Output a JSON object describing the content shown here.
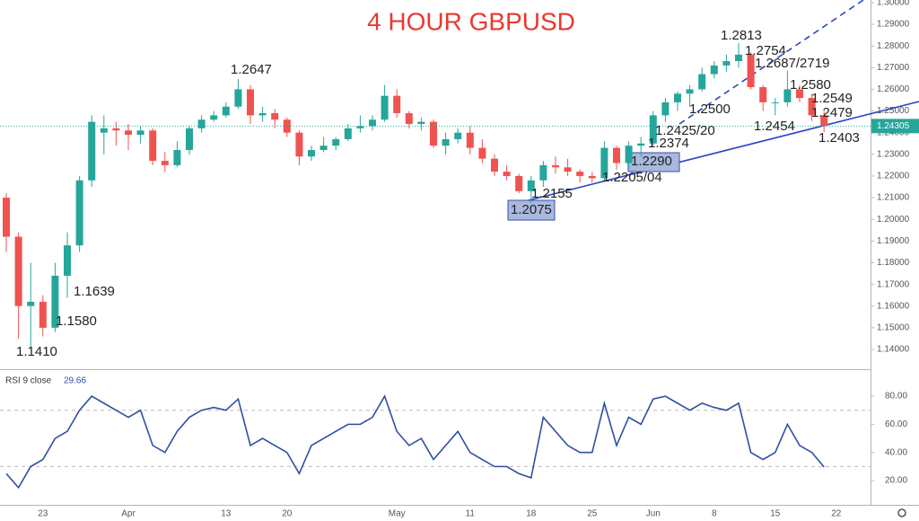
{
  "chart_data": [
    {
      "type": "candlestick",
      "title": "4 HOUR GBPUSD",
      "categories": [
        null,
        null,
        null,
        "23",
        null,
        null,
        null,
        null,
        null,
        null,
        "Apr",
        null,
        null,
        null,
        null,
        null,
        null,
        null,
        "13",
        null,
        null,
        null,
        null,
        "20",
        null,
        null,
        null,
        null,
        null,
        null,
        null,
        null,
        "May",
        null,
        null,
        null,
        null,
        null,
        "11",
        null,
        null,
        null,
        null,
        "18",
        null,
        null,
        null,
        null,
        "25",
        null,
        null,
        null,
        null,
        "Jun",
        null,
        null,
        null,
        null,
        "8",
        null,
        null,
        null,
        null,
        "15",
        null,
        null,
        null,
        null,
        "22"
      ],
      "open": [
        1.21,
        1.192,
        1.16,
        1.162,
        1.15,
        1.174,
        1.188,
        1.218,
        1.24,
        1.242,
        1.241,
        1.239,
        1.241,
        1.227,
        1.225,
        1.232,
        1.242,
        1.246,
        1.248,
        1.252,
        1.26,
        1.248,
        1.249,
        1.246,
        1.24,
        1.229,
        1.232,
        1.234,
        1.237,
        1.242,
        1.243,
        1.246,
        1.257,
        1.249,
        1.244,
        1.245,
        1.234,
        1.237,
        1.24,
        1.233,
        1.228,
        1.222,
        1.22,
        1.213,
        1.218,
        1.225,
        1.224,
        1.222,
        1.22,
        1.219,
        1.233,
        1.226,
        1.234,
        1.235,
        1.248,
        1.254,
        1.258,
        1.26,
        1.267,
        1.271,
        1.273,
        1.276,
        1.261,
        1.254,
        1.254,
        1.26,
        1.256,
        1.248,
        null
      ],
      "high": [
        1.212,
        1.194,
        1.18,
        1.165,
        1.18,
        1.194,
        1.22,
        1.248,
        1.248,
        1.245,
        1.244,
        1.243,
        1.242,
        1.231,
        1.236,
        1.243,
        1.248,
        1.25,
        1.254,
        1.2647,
        1.262,
        1.252,
        1.251,
        1.247,
        1.241,
        1.234,
        1.238,
        1.238,
        1.244,
        1.248,
        1.248,
        1.262,
        1.26,
        1.25,
        1.247,
        1.246,
        1.24,
        1.242,
        1.243,
        1.237,
        1.23,
        1.225,
        1.221,
        1.22,
        1.227,
        1.229,
        1.228,
        1.223,
        1.222,
        1.236,
        1.234,
        1.236,
        1.238,
        1.25,
        1.256,
        1.259,
        1.262,
        1.27,
        1.273,
        1.276,
        1.2813,
        1.277,
        1.262,
        1.256,
        1.2687,
        1.262,
        1.258,
        1.25,
        null
      ],
      "low": [
        1.185,
        1.145,
        1.141,
        1.146,
        1.148,
        1.1639,
        1.185,
        1.215,
        1.23,
        1.234,
        1.232,
        1.235,
        1.225,
        1.222,
        1.224,
        1.23,
        1.24,
        1.245,
        1.247,
        1.251,
        1.244,
        1.245,
        1.242,
        1.238,
        1.225,
        1.227,
        1.231,
        1.232,
        1.236,
        1.24,
        1.241,
        1.245,
        1.247,
        1.242,
        1.241,
        1.233,
        1.23,
        1.235,
        1.23,
        1.226,
        1.22,
        1.218,
        1.212,
        1.2075,
        1.215,
        1.221,
        1.22,
        1.217,
        1.217,
        1.218,
        1.223,
        1.224,
        1.229,
        1.234,
        1.245,
        1.25,
        1.252,
        1.259,
        1.265,
        1.268,
        1.27,
        1.26,
        1.25,
        1.248,
        1.252,
        1.254,
        1.2454,
        1.2403,
        null
      ],
      "close": [
        1.192,
        1.16,
        1.162,
        1.15,
        1.174,
        1.188,
        1.218,
        1.245,
        1.242,
        1.241,
        1.239,
        1.241,
        1.227,
        1.225,
        1.232,
        1.242,
        1.246,
        1.248,
        1.252,
        1.26,
        1.248,
        1.249,
        1.246,
        1.24,
        1.229,
        1.232,
        1.234,
        1.237,
        1.242,
        1.243,
        1.246,
        1.257,
        1.249,
        1.244,
        1.245,
        1.234,
        1.237,
        1.24,
        1.233,
        1.228,
        1.222,
        1.22,
        1.213,
        1.218,
        1.225,
        1.224,
        1.222,
        1.22,
        1.219,
        1.233,
        1.226,
        1.234,
        1.235,
        1.248,
        1.254,
        1.258,
        1.26,
        1.267,
        1.271,
        1.273,
        1.276,
        1.261,
        1.254,
        1.254,
        1.26,
        1.256,
        1.248,
        1.24305,
        null
      ],
      "up_color": "#26a69a",
      "down_color": "#ef5350",
      "ylim": [
        1.1313,
        1.3012
      ],
      "yticks": [
        {
          "value": 1.14,
          "label": "1.14000"
        },
        {
          "value": 1.15,
          "label": "1.15000"
        },
        {
          "value": 1.16,
          "label": "1.16000"
        },
        {
          "value": 1.17,
          "label": "1.17000"
        },
        {
          "value": 1.18,
          "label": "1.18000"
        },
        {
          "value": 1.19,
          "label": "1.19000"
        },
        {
          "value": 1.2,
          "label": "1.20000"
        },
        {
          "value": 1.21,
          "label": "1.21000"
        },
        {
          "value": 1.22,
          "label": "1.22000"
        },
        {
          "value": 1.23,
          "label": "1.23000"
        },
        {
          "value": 1.24,
          "label": "1.24000"
        },
        {
          "value": 1.25,
          "label": "1.25000"
        },
        {
          "value": 1.26,
          "label": "1.26000"
        },
        {
          "value": 1.27,
          "label": "1.27000"
        },
        {
          "value": 1.28,
          "label": "1.28000"
        },
        {
          "value": 1.29,
          "label": "1.29000"
        },
        {
          "value": 1.3,
          "label": "1.30000"
        }
      ],
      "last_price": 1.24305,
      "annotations": [
        "1.2647",
        "1.1639",
        "1.1580",
        "1.1410",
        "1.2155",
        "1.2075",
        "1.2205/04",
        "1.2290",
        "1.2374",
        "1.2425/20",
        "1.2500",
        "1.2813",
        "1.2754",
        "1.2687/2719",
        "1.2580",
        "1.2549",
        "1.2479",
        "1.2454",
        "1.2403"
      ]
    },
    {
      "type": "line",
      "title": "RSI 9 close",
      "color": "#2f4fa3",
      "values": [
        25,
        15,
        30,
        35,
        50,
        55,
        70,
        80,
        75,
        70,
        65,
        70,
        45,
        40,
        55,
        65,
        70,
        72,
        70,
        78,
        45,
        50,
        45,
        40,
        25,
        45,
        50,
        55,
        60,
        60,
        65,
        80,
        55,
        45,
        50,
        35,
        45,
        55,
        40,
        35,
        30,
        30,
        25,
        22,
        65,
        55,
        45,
        40,
        40,
        75,
        45,
        65,
        60,
        78,
        80,
        75,
        70,
        75,
        72,
        70,
        75,
        40,
        35,
        40,
        60,
        45,
        40,
        29.66,
        null
      ],
      "levels": [
        70,
        30
      ],
      "ylim": [
        2.8,
        97.9
      ],
      "yticks": [
        {
          "value": 20,
          "label": "20.00"
        },
        {
          "value": 40,
          "label": "40.00"
        },
        {
          "value": 60,
          "label": "60.00"
        },
        {
          "value": 80,
          "label": "80.00"
        }
      ]
    }
  ]
}
